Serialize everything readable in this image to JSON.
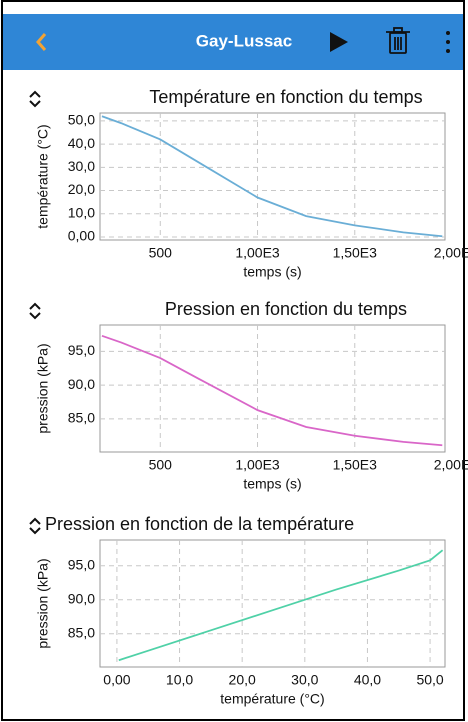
{
  "header": {
    "title": "Gay-Lussac"
  },
  "chart_data": [
    {
      "type": "line",
      "title": "Température en fonction du temps",
      "x_label": "temps (s)",
      "y_label": "température (°C)",
      "x": [
        200,
        300,
        500,
        700,
        1000,
        1250,
        1500,
        1750,
        1950
      ],
      "series": [
        {
          "name": "température",
          "color": "#6aaed6",
          "values": [
            52,
            49,
            42,
            32,
            17,
            9,
            5,
            2,
            0.3
          ]
        }
      ],
      "xlim": [
        190,
        2000
      ],
      "ylim": [
        -1.3,
        53.4
      ],
      "xticks": [
        500,
        {
          "value": 1000,
          "label": "1,00E3"
        },
        {
          "value": 1500,
          "label": "1,50E3"
        },
        {
          "value": 2000,
          "label": "2,00E"
        }
      ],
      "yticks": [
        {
          "value": 0,
          "label": "0,00"
        },
        {
          "value": 10,
          "label": "10,0"
        },
        {
          "value": 20,
          "label": "20,0"
        },
        {
          "value": 30,
          "label": "30,0"
        },
        {
          "value": 40,
          "label": "40,0"
        },
        {
          "value": 50,
          "label": "50,0"
        }
      ],
      "grid": true
    },
    {
      "type": "line",
      "title": "Pression en fonction du temps",
      "x_label": "temps (s)",
      "y_label": "pression (kPa)",
      "x": [
        200,
        300,
        500,
        700,
        1000,
        1250,
        1500,
        1750,
        1950
      ],
      "series": [
        {
          "name": "pression",
          "color": "#d966c8",
          "values": [
            97.3,
            96.3,
            94.0,
            90.9,
            86.3,
            83.8,
            82.5,
            81.6,
            81.1
          ]
        }
      ],
      "xlim": [
        190,
        2000
      ],
      "ylim": [
        80.1,
        98.9
      ],
      "xticks": [
        500,
        {
          "value": 1000,
          "label": "1,00E3"
        },
        {
          "value": 1500,
          "label": "1,50E3"
        },
        {
          "value": 2000,
          "label": "2,00E"
        }
      ],
      "yticks": [
        {
          "value": 85,
          "label": "85,0"
        },
        {
          "value": 90,
          "label": "90,0"
        },
        {
          "value": 95,
          "label": "95,0"
        }
      ],
      "grid": true
    },
    {
      "type": "line",
      "title": "Pression en fonction de la température",
      "x_label": "température (°C)",
      "y_label": "pression (kPa)",
      "x": [
        0.3,
        5,
        15,
        25,
        35,
        45,
        50,
        52
      ],
      "series": [
        {
          "name": "pression",
          "color": "#4fd1a7",
          "values": [
            81.1,
            82.5,
            85.5,
            88.5,
            91.5,
            94.3,
            95.8,
            97.3
          ]
        }
      ],
      "xlim": [
        -2.7,
        53.5
      ],
      "ylim": [
        80.1,
        98.8
      ],
      "xticks": [
        {
          "value": 0,
          "label": "0,00"
        },
        {
          "value": 10,
          "label": "10,0"
        },
        {
          "value": 20,
          "label": "20,0"
        },
        {
          "value": 30,
          "label": "30,0"
        },
        {
          "value": 40,
          "label": "40,0"
        },
        {
          "value": 50,
          "label": "50,0"
        }
      ],
      "yticks": [
        {
          "value": 85,
          "label": "85,0"
        },
        {
          "value": 90,
          "label": "90,0"
        },
        {
          "value": 95,
          "label": "95,0"
        }
      ],
      "grid": true
    }
  ]
}
